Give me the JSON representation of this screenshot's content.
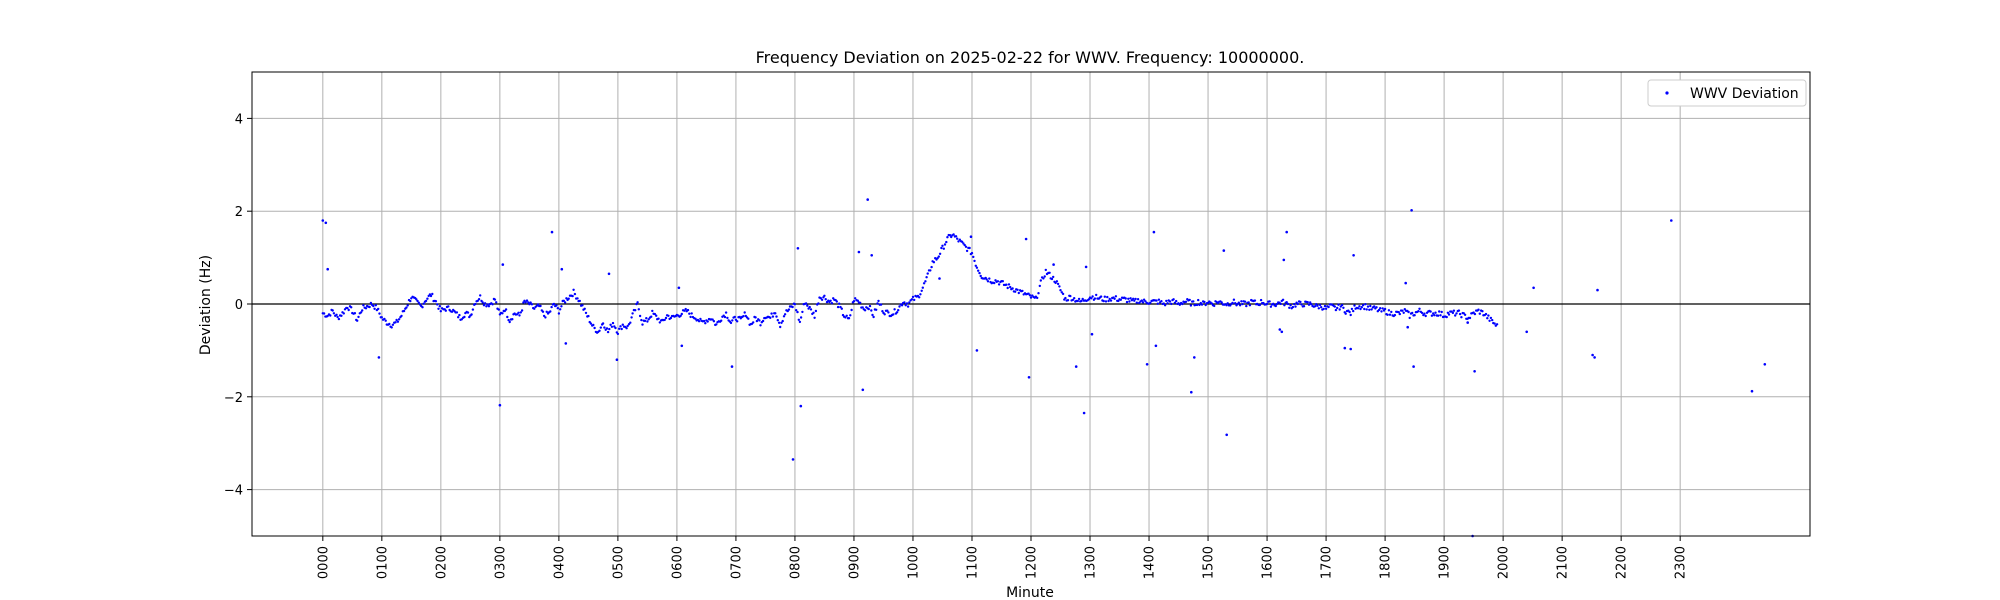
{
  "chart_data": {
    "type": "scatter",
    "title": "Frequency Deviation on 2025-02-22 for WWV. Frequency: 10000000.",
    "xlabel": "Minute",
    "ylabel": "Deviation (Hz)",
    "xlim": [
      -72,
      1512
    ],
    "ylim": [
      -5,
      5
    ],
    "x_ticks": [
      0,
      60,
      120,
      180,
      240,
      300,
      360,
      420,
      480,
      540,
      600,
      660,
      720,
      780,
      840,
      900,
      960,
      1020,
      1080,
      1140,
      1200,
      1260,
      1320,
      1380
    ],
    "x_tick_labels": [
      "0000",
      "0100",
      "0200",
      "0300",
      "0400",
      "0500",
      "0600",
      "0700",
      "0800",
      "0900",
      "1000",
      "1100",
      "1200",
      "1300",
      "1400",
      "1500",
      "1600",
      "1700",
      "1800",
      "1900",
      "2000",
      "2100",
      "2200",
      "2300"
    ],
    "y_ticks": [
      -4,
      -2,
      0,
      2,
      4
    ],
    "y_tick_labels": [
      "−4",
      "−2",
      "0",
      "2",
      "4"
    ],
    "grid": true,
    "reference_line_y": 0,
    "legend_position": "top-right",
    "series": [
      {
        "name": "WWV Deviation",
        "color": "#0000ff",
        "marker": "point",
        "baseline": [
          [
            0,
            -0.2
          ],
          [
            5,
            -0.25
          ],
          [
            10,
            -0.15
          ],
          [
            15,
            -0.3
          ],
          [
            20,
            -0.2
          ],
          [
            25,
            -0.05
          ],
          [
            30,
            -0.15
          ],
          [
            35,
            -0.35
          ],
          [
            40,
            -0.1
          ],
          [
            45,
            -0.05
          ],
          [
            50,
            0.0
          ],
          [
            55,
            -0.1
          ],
          [
            60,
            -0.3
          ],
          [
            65,
            -0.4
          ],
          [
            70,
            -0.45
          ],
          [
            75,
            -0.4
          ],
          [
            80,
            -0.25
          ],
          [
            85,
            -0.05
          ],
          [
            90,
            0.15
          ],
          [
            95,
            0.05
          ],
          [
            100,
            -0.05
          ],
          [
            105,
            0.1
          ],
          [
            110,
            0.2
          ],
          [
            115,
            0.05
          ],
          [
            120,
            -0.15
          ],
          [
            125,
            -0.1
          ],
          [
            130,
            -0.1
          ],
          [
            135,
            -0.2
          ],
          [
            140,
            -0.3
          ],
          [
            145,
            -0.2
          ],
          [
            150,
            -0.25
          ],
          [
            155,
            0.05
          ],
          [
            160,
            0.15
          ],
          [
            165,
            0.0
          ],
          [
            170,
            0.0
          ],
          [
            175,
            0.1
          ],
          [
            180,
            -0.25
          ],
          [
            185,
            -0.1
          ],
          [
            190,
            -0.35
          ],
          [
            195,
            -0.2
          ],
          [
            200,
            -0.25
          ],
          [
            205,
            0.05
          ],
          [
            210,
            0.0
          ],
          [
            215,
            -0.1
          ],
          [
            220,
            -0.05
          ],
          [
            225,
            -0.25
          ],
          [
            230,
            -0.2
          ],
          [
            235,
            0.0
          ],
          [
            240,
            -0.15
          ],
          [
            245,
            0.05
          ],
          [
            250,
            0.15
          ],
          [
            255,
            0.25
          ],
          [
            260,
            0.1
          ],
          [
            265,
            -0.1
          ],
          [
            270,
            -0.3
          ],
          [
            275,
            -0.5
          ],
          [
            280,
            -0.6
          ],
          [
            285,
            -0.4
          ],
          [
            290,
            -0.6
          ],
          [
            295,
            -0.4
          ],
          [
            300,
            -0.6
          ],
          [
            305,
            -0.45
          ],
          [
            310,
            -0.5
          ],
          [
            315,
            -0.25
          ],
          [
            320,
            0.0
          ],
          [
            325,
            -0.4
          ],
          [
            330,
            -0.35
          ],
          [
            335,
            -0.2
          ],
          [
            340,
            -0.3
          ],
          [
            345,
            -0.4
          ],
          [
            350,
            -0.25
          ],
          [
            355,
            -0.3
          ],
          [
            360,
            -0.25
          ],
          [
            365,
            -0.2
          ],
          [
            370,
            -0.15
          ],
          [
            375,
            -0.25
          ],
          [
            380,
            -0.3
          ],
          [
            385,
            -0.4
          ],
          [
            390,
            -0.35
          ],
          [
            395,
            -0.3
          ],
          [
            400,
            -0.45
          ],
          [
            405,
            -0.3
          ],
          [
            410,
            -0.2
          ],
          [
            415,
            -0.4
          ],
          [
            420,
            -0.3
          ],
          [
            425,
            -0.35
          ],
          [
            430,
            -0.2
          ],
          [
            435,
            -0.45
          ],
          [
            440,
            -0.3
          ],
          [
            445,
            -0.4
          ],
          [
            450,
            -0.25
          ],
          [
            455,
            -0.3
          ],
          [
            460,
            -0.15
          ],
          [
            465,
            -0.45
          ],
          [
            470,
            -0.2
          ],
          [
            475,
            -0.1
          ],
          [
            480,
            0.0
          ],
          [
            485,
            -0.4
          ],
          [
            490,
            0.05
          ],
          [
            495,
            -0.1
          ],
          [
            500,
            -0.25
          ],
          [
            505,
            0.15
          ],
          [
            510,
            0.15
          ],
          [
            515,
            0.05
          ],
          [
            520,
            0.1
          ],
          [
            525,
            -0.05
          ],
          [
            530,
            -0.25
          ],
          [
            535,
            -0.35
          ],
          [
            540,
            0.1
          ],
          [
            545,
            0.05
          ],
          [
            550,
            -0.1
          ],
          [
            555,
            -0.05
          ],
          [
            560,
            -0.25
          ],
          [
            565,
            0.05
          ],
          [
            570,
            -0.15
          ],
          [
            575,
            -0.2
          ],
          [
            580,
            -0.2
          ],
          [
            585,
            -0.1
          ],
          [
            590,
            0.05
          ],
          [
            595,
            0.0
          ],
          [
            600,
            0.1
          ],
          [
            605,
            0.15
          ],
          [
            610,
            0.35
          ],
          [
            615,
            0.6
          ],
          [
            620,
            0.9
          ],
          [
            625,
            1.0
          ],
          [
            630,
            1.2
          ],
          [
            635,
            1.4
          ],
          [
            640,
            1.5
          ],
          [
            645,
            1.4
          ],
          [
            650,
            1.3
          ],
          [
            655,
            1.2
          ],
          [
            660,
            1.1
          ],
          [
            665,
            0.8
          ],
          [
            670,
            0.6
          ],
          [
            675,
            0.55
          ],
          [
            680,
            0.5
          ],
          [
            685,
            0.5
          ],
          [
            690,
            0.45
          ],
          [
            695,
            0.4
          ],
          [
            700,
            0.35
          ],
          [
            705,
            0.3
          ],
          [
            710,
            0.25
          ],
          [
            715,
            0.2
          ],
          [
            720,
            0.15
          ],
          [
            725,
            0.1
          ],
          [
            730,
            0.45
          ],
          [
            735,
            0.7
          ],
          [
            740,
            0.6
          ],
          [
            745,
            0.5
          ],
          [
            750,
            0.3
          ],
          [
            755,
            0.1
          ],
          [
            760,
            0.15
          ],
          [
            765,
            0.1
          ],
          [
            770,
            0.05
          ],
          [
            775,
            0.1
          ],
          [
            780,
            0.15
          ],
          [
            785,
            0.15
          ],
          [
            790,
            0.12
          ],
          [
            795,
            0.1
          ],
          [
            800,
            0.12
          ],
          [
            805,
            0.12
          ],
          [
            810,
            0.1
          ],
          [
            815,
            0.1
          ],
          [
            820,
            0.08
          ],
          [
            825,
            0.05
          ],
          [
            830,
            0.08
          ],
          [
            835,
            0.05
          ],
          [
            840,
            0.05
          ],
          [
            845,
            0.05
          ],
          [
            850,
            0.05
          ],
          [
            855,
            0.0
          ],
          [
            860,
            0.05
          ],
          [
            865,
            0.05
          ],
          [
            870,
            0.0
          ],
          [
            875,
            0.05
          ],
          [
            880,
            0.05
          ],
          [
            885,
            0.0
          ],
          [
            890,
            0.05
          ],
          [
            895,
            0.0
          ],
          [
            900,
            0.05
          ],
          [
            905,
            0.0
          ],
          [
            910,
            0.05
          ],
          [
            915,
            0.02
          ],
          [
            920,
            0.0
          ],
          [
            925,
            0.05
          ],
          [
            930,
            0.0
          ],
          [
            935,
            0.0
          ],
          [
            940,
            0.0
          ],
          [
            945,
            0.05
          ],
          [
            950,
            0.0
          ],
          [
            955,
            0.05
          ],
          [
            960,
            0.0
          ],
          [
            965,
            0.0
          ],
          [
            970,
            0.0
          ],
          [
            975,
            0.05
          ],
          [
            980,
            0.0
          ],
          [
            985,
            -0.05
          ],
          [
            990,
            0.0
          ],
          [
            995,
            0.0
          ],
          [
            1000,
            0.0
          ],
          [
            1005,
            0.0
          ],
          [
            1010,
            -0.05
          ],
          [
            1015,
            -0.05
          ],
          [
            1020,
            -0.1
          ],
          [
            1025,
            -0.05
          ],
          [
            1030,
            -0.1
          ],
          [
            1035,
            -0.05
          ],
          [
            1040,
            -0.15
          ],
          [
            1045,
            -0.2
          ],
          [
            1050,
            -0.05
          ],
          [
            1055,
            -0.05
          ],
          [
            1060,
            -0.05
          ],
          [
            1065,
            -0.1
          ],
          [
            1070,
            -0.1
          ],
          [
            1075,
            -0.15
          ],
          [
            1080,
            -0.15
          ],
          [
            1085,
            -0.2
          ],
          [
            1090,
            -0.2
          ],
          [
            1095,
            -0.2
          ],
          [
            1100,
            -0.15
          ],
          [
            1105,
            -0.25
          ],
          [
            1110,
            -0.2
          ],
          [
            1115,
            -0.15
          ],
          [
            1120,
            -0.2
          ],
          [
            1125,
            -0.2
          ],
          [
            1130,
            -0.2
          ],
          [
            1135,
            -0.2
          ],
          [
            1140,
            -0.25
          ],
          [
            1145,
            -0.2
          ],
          [
            1150,
            -0.2
          ],
          [
            1155,
            -0.2
          ],
          [
            1160,
            -0.25
          ],
          [
            1165,
            -0.3
          ],
          [
            1170,
            -0.2
          ],
          [
            1175,
            -0.15
          ],
          [
            1180,
            -0.2
          ],
          [
            1185,
            -0.3
          ],
          [
            1190,
            -0.4
          ],
          [
            1195,
            -0.5
          ]
        ],
        "outliers": [
          [
            0,
            1.8
          ],
          [
            3,
            1.75
          ],
          [
            5,
            0.75
          ],
          [
            57,
            -1.15
          ],
          [
            180,
            -2.18
          ],
          [
            183,
            0.85
          ],
          [
            233,
            1.55
          ],
          [
            243,
            0.75
          ],
          [
            247,
            -0.85
          ],
          [
            291,
            0.65
          ],
          [
            299,
            -1.2
          ],
          [
            362,
            0.35
          ],
          [
            365,
            -0.9
          ],
          [
            416,
            -1.35
          ],
          [
            478,
            -3.35
          ],
          [
            483,
            1.2
          ],
          [
            486,
            -2.2
          ],
          [
            545,
            1.12
          ],
          [
            549,
            -1.85
          ],
          [
            554,
            2.25
          ],
          [
            558,
            1.05
          ],
          [
            627,
            0.55
          ],
          [
            659,
            1.45
          ],
          [
            665,
            -1.0
          ],
          [
            715,
            1.4
          ],
          [
            718,
            -1.58
          ],
          [
            743,
            0.85
          ],
          [
            766,
            -1.35
          ],
          [
            774,
            -2.35
          ],
          [
            776,
            0.8
          ],
          [
            782,
            -0.65
          ],
          [
            838,
            -1.3
          ],
          [
            845,
            1.55
          ],
          [
            847,
            -0.9
          ],
          [
            883,
            -1.9
          ],
          [
            886,
            -1.15
          ],
          [
            916,
            1.15
          ],
          [
            919,
            -2.82
          ],
          [
            973,
            -0.55
          ],
          [
            975,
            -0.6
          ],
          [
            977,
            0.95
          ],
          [
            980,
            1.55
          ],
          [
            1039,
            -0.95
          ],
          [
            1045,
            -0.97
          ],
          [
            1048,
            1.05
          ],
          [
            1101,
            0.45
          ],
          [
            1103,
            -0.5
          ],
          [
            1107,
            2.02
          ],
          [
            1109,
            -1.35
          ],
          [
            1164,
            -0.4
          ],
          [
            1169,
            -5.0
          ],
          [
            1171,
            -1.45
          ],
          [
            1224,
            -0.6
          ],
          [
            1231,
            0.35
          ],
          [
            1291,
            -1.1
          ],
          [
            1293,
            -1.15
          ],
          [
            1296,
            0.3
          ],
          [
            1371,
            1.8
          ],
          [
            1453,
            -1.88
          ],
          [
            1466,
            -1.3
          ]
        ]
      }
    ]
  }
}
